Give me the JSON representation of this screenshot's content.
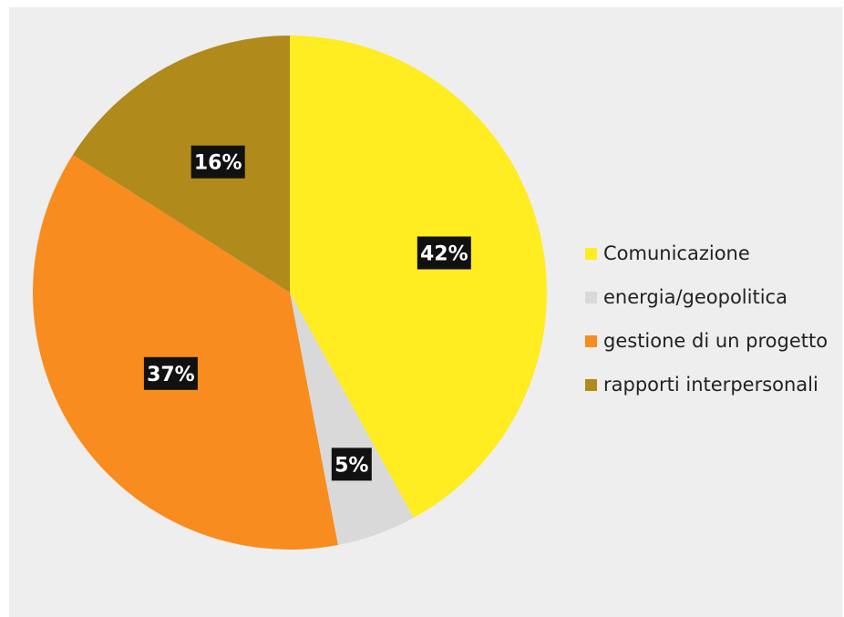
{
  "chart_data": {
    "type": "pie",
    "categories": [
      "Comunicazione",
      "energia/geopolitica",
      "gestione di un progetto",
      "rapporti interpersonali"
    ],
    "values": [
      42,
      5,
      37,
      16
    ],
    "data_labels": [
      "42%",
      "5%",
      "37%",
      "16%"
    ],
    "colors": [
      "#ffec21",
      "#d9d9d9",
      "#f98c1e",
      "#b18a1c"
    ],
    "legend_position": "right",
    "start": "12 o'clock, clockwise"
  }
}
